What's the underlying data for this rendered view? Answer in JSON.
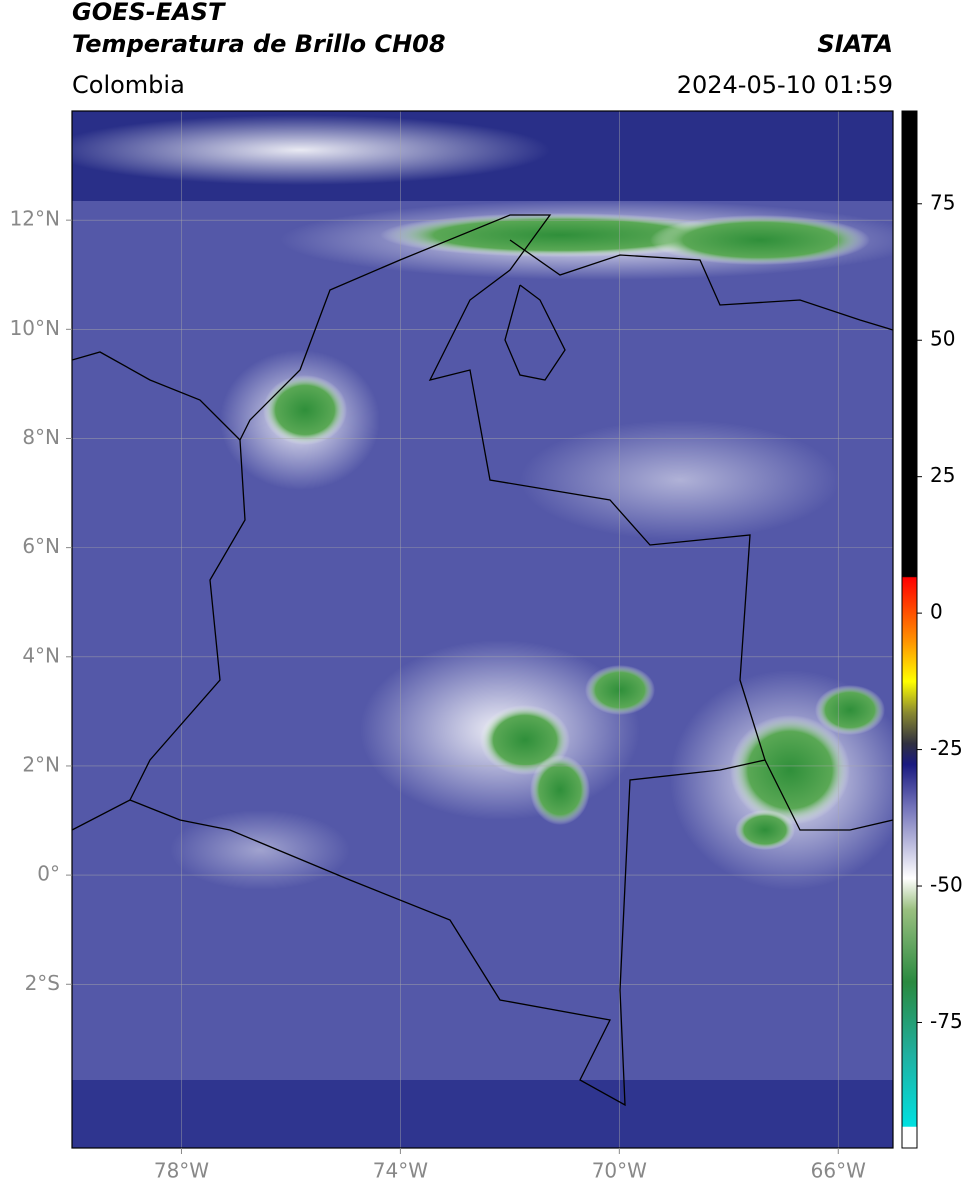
{
  "chart_data": {
    "type": "map",
    "title": "GOES-EAST",
    "subtitle": "Temperatura de Brillo CH08",
    "region": "Colombia",
    "source": "SIATA",
    "datetime": "2024-05-10 01:59",
    "xlim": [
      -80,
      -65
    ],
    "ylim": [
      -5,
      14
    ],
    "xticks": [
      {
        "value": -78,
        "label": "78°W"
      },
      {
        "value": -74,
        "label": "74°W"
      },
      {
        "value": -70,
        "label": "70°W"
      },
      {
        "value": -66,
        "label": "66°W"
      }
    ],
    "yticks": [
      {
        "value": 12,
        "label": "12°N"
      },
      {
        "value": 10,
        "label": "10°N"
      },
      {
        "value": 8,
        "label": "8°N"
      },
      {
        "value": 6,
        "label": "6°N"
      },
      {
        "value": 4,
        "label": "4°N"
      },
      {
        "value": 2,
        "label": "2°N"
      },
      {
        "value": 0,
        "label": "0°"
      },
      {
        "value": -2,
        "label": "2°S"
      }
    ],
    "grid": true,
    "colorbar": {
      "lim": [
        -98,
        92
      ],
      "ticks": [
        75,
        50,
        25,
        0,
        -25,
        -50,
        -75
      ]
    }
  }
}
